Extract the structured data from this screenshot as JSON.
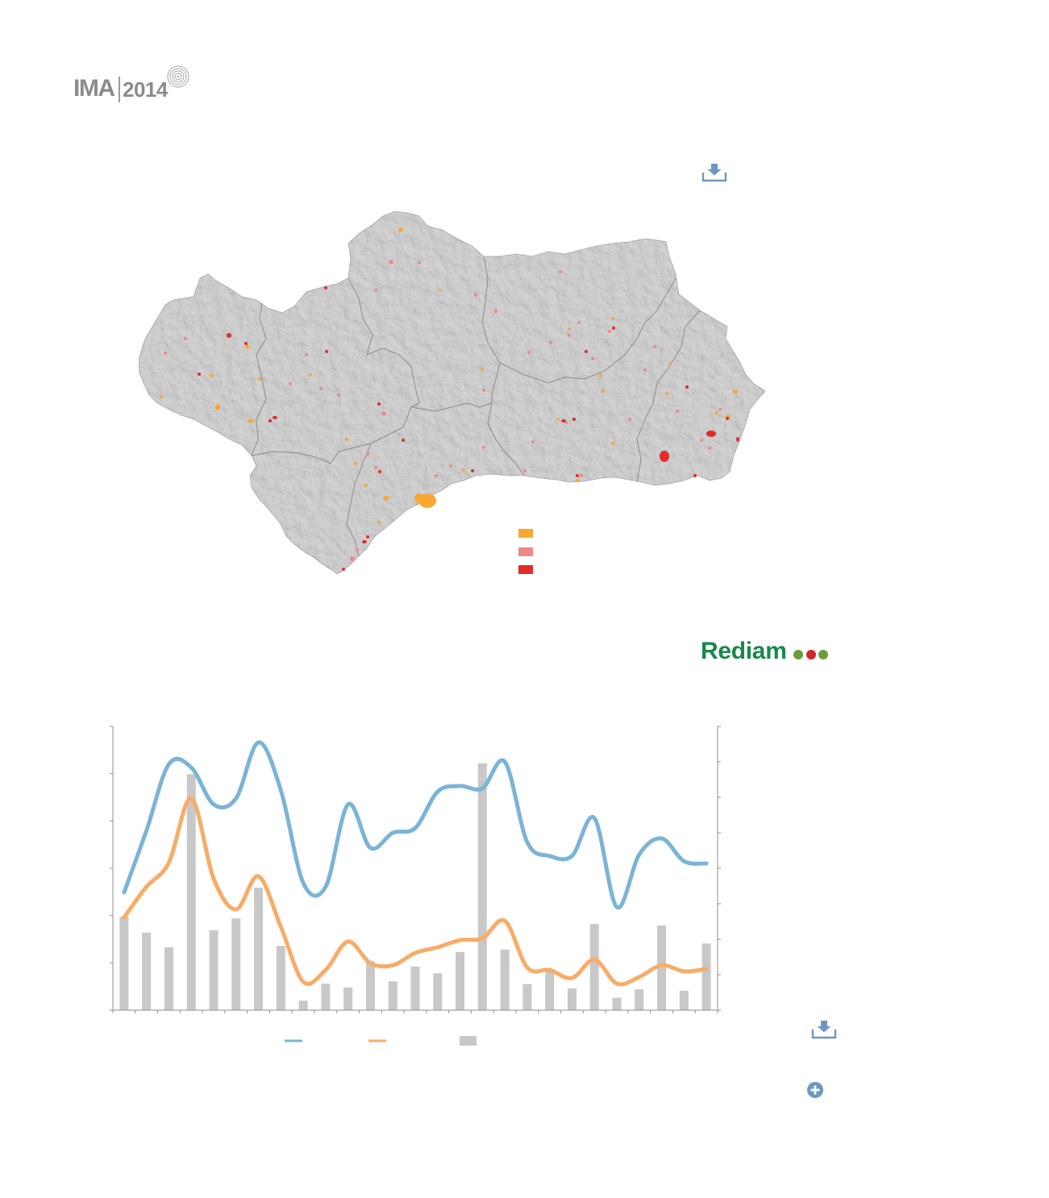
{
  "header": {
    "logo_text": "IMA",
    "logo_year": "2014",
    "logo_icon": "concentric-rings-icon"
  },
  "map": {
    "download_icon": "download-icon",
    "land_color": "#d3d3d3",
    "border_color": "#8c8c8c",
    "legend": [
      {
        "color": "#f7a733"
      },
      {
        "color": "#ee8985"
      },
      {
        "color": "#e22c2c"
      }
    ]
  },
  "rediam": {
    "text": "Rediam",
    "text_color": "#17894a",
    "dot_colors": [
      "#6d9b3e",
      "#d1262e",
      "#6d9b3e"
    ]
  },
  "chart_data": {
    "type": "bar",
    "ylim": [
      0,
      6
    ],
    "y2lim": [
      0,
      8
    ],
    "grid": false,
    "legend": "bottom",
    "series": [
      {
        "type": "line",
        "color": "#7ab4d6",
        "values": [
          2.49,
          3.8,
          5.2,
          5.13,
          4.35,
          4.48,
          5.66,
          4.65,
          2.69,
          2.61,
          4.35,
          3.43,
          3.75,
          3.85,
          4.62,
          4.74,
          4.69,
          5.25,
          3.55,
          3.26,
          3.26,
          4.06,
          2.18,
          3.29,
          3.63,
          3.15,
          3.1
        ]
      },
      {
        "type": "line",
        "color": "#f8ac66",
        "values": [
          1.96,
          2.61,
          3.12,
          4.48,
          2.78,
          2.13,
          2.83,
          1.76,
          0.6,
          0.85,
          1.45,
          0.99,
          0.95,
          1.21,
          1.33,
          1.48,
          1.52,
          1.89,
          0.9,
          0.85,
          0.68,
          1.07,
          0.56,
          0.7,
          0.95,
          0.82,
          0.87
        ]
      },
      {
        "type": "bar",
        "color": "#c8c8c8",
        "values": [
          1.98,
          1.64,
          1.33,
          4.99,
          1.69,
          1.94,
          2.59,
          1.36,
          0.2,
          0.56,
          0.48,
          1.04,
          0.61,
          0.92,
          0.78,
          1.23,
          5.22,
          1.28,
          0.55,
          0.82,
          0.46,
          1.82,
          0.26,
          0.44,
          1.79,
          0.41,
          1.41
        ]
      }
    ]
  },
  "footer": {
    "download_icon": "download-icon",
    "more_icon": "plus-circle-icon",
    "icon_color": "#6d97c0"
  }
}
